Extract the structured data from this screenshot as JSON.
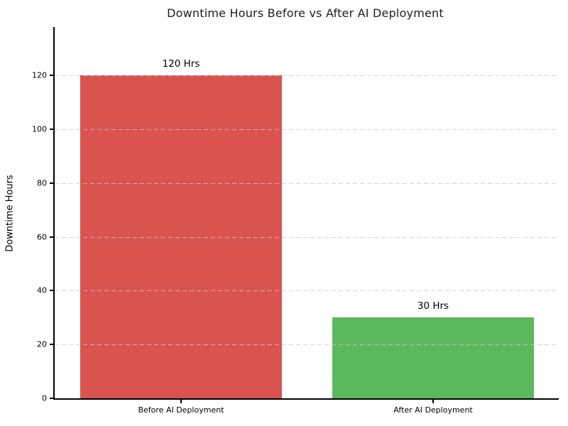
{
  "figure": {
    "title": "Downtime Hours Before vs After AI Deployment",
    "background": "#ffffff",
    "title_color": "#1c1c24"
  },
  "chart_data": {
    "type": "bar",
    "title": "Downtime Hours Before vs After AI Deployment",
    "categories": [
      "Before AI Deployment",
      "After AI Deployment"
    ],
    "values": [
      120,
      30
    ],
    "bar_labels": [
      "120 Hrs",
      "30 Hrs"
    ],
    "bar_colors": [
      "#d9534f",
      "#5cb85c"
    ],
    "xlabel": "",
    "ylabel": "Downtime Hours",
    "ylim": [
      0,
      138
    ],
    "yticks": [
      0,
      20,
      40,
      60,
      80,
      100,
      120
    ],
    "grid": "horizontal-dashed",
    "grid_color": "#c8c8c8",
    "axis_color": "#000000",
    "legend": "none",
    "bar_width_fraction": 0.8
  }
}
